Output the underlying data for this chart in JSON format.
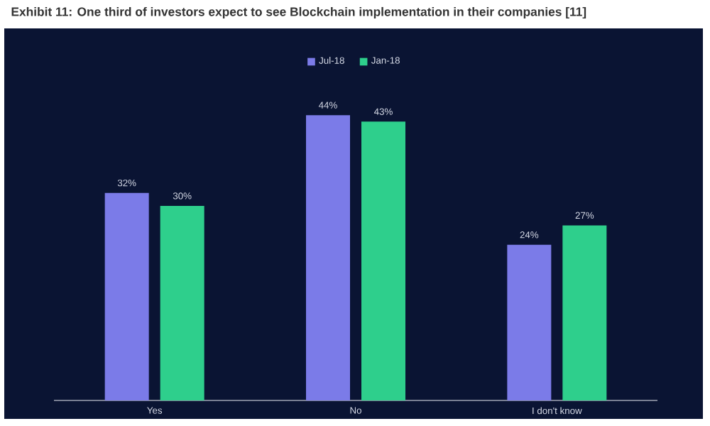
{
  "chart_data": {
    "type": "bar",
    "title": "Exhibit 11: One third of investors expect to see Blockchain implementation in their companies [11]",
    "categories": [
      "Yes",
      "No",
      "I don't know"
    ],
    "series": [
      {
        "name": "Jul-18",
        "color": "#7b7be8",
        "values": [
          32,
          44,
          24
        ],
        "value_labels": [
          "32%",
          "44%",
          "24%"
        ]
      },
      {
        "name": "Jan-18",
        "color": "#2ecf8c",
        "values": [
          30,
          43,
          27
        ],
        "value_labels": [
          "30%",
          "43%",
          "27%"
        ]
      }
    ],
    "legend": "top"
  }
}
